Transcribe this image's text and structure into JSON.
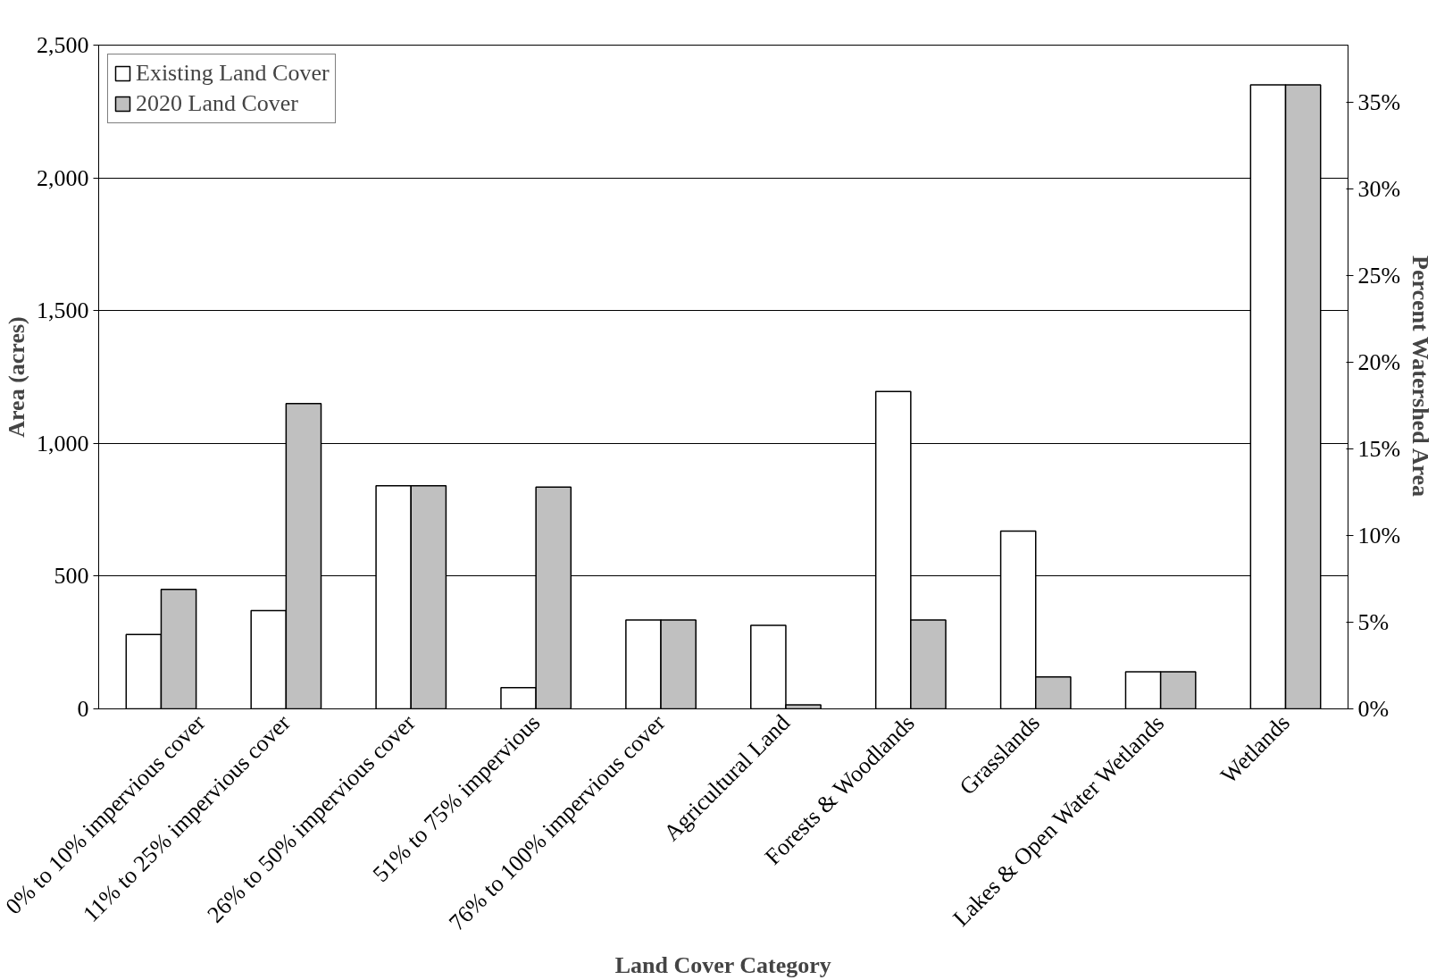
{
  "chart_data": {
    "type": "bar",
    "xlabel": "Land Cover Category",
    "ylabel": "Area (acres)",
    "y2label": "Percent Watershed Area",
    "categories": [
      "0% to 10% impervious cover",
      "11% to 25% impervious cover",
      "26% to 50% impervious cover",
      "51% to 75% impervious",
      "76% to 100% impervious cover",
      "Agricultural Land",
      "Forests & Woodlands",
      "Grasslands",
      "Lakes & Open Water Wetlands",
      "Wetlands"
    ],
    "series": [
      {
        "name": "Existing Land Cover",
        "color": "#ffffff",
        "values": [
          280,
          370,
          840,
          80,
          335,
          315,
          1195,
          670,
          140,
          2350
        ]
      },
      {
        "name": "2020 Land Cover",
        "color": "#c0c0c0",
        "values": [
          450,
          1150,
          840,
          835,
          335,
          15,
          335,
          120,
          140,
          2350
        ]
      }
    ],
    "ylim": [
      0,
      2500
    ],
    "yticks": [
      0,
      {
        "value": 500,
        "label": "500"
      },
      {
        "value": 1000,
        "label": "1,000"
      },
      {
        "value": 1500,
        "label": "1,500"
      },
      {
        "value": 2000,
        "label": "2,000"
      },
      {
        "value": 2500,
        "label": "2,500"
      }
    ],
    "y2lim": [
      0,
      38.3
    ],
    "y2ticks": [
      {
        "value": 0,
        "label": "0%"
      },
      {
        "value": 5,
        "label": "5%"
      },
      {
        "value": 10,
        "label": "10%"
      },
      {
        "value": 15,
        "label": "15%"
      },
      {
        "value": 20,
        "label": "20%"
      },
      {
        "value": 25,
        "label": "25%"
      },
      {
        "value": 30,
        "label": "30%"
      },
      {
        "value": 35,
        "label": "35%"
      }
    ],
    "grid": "y",
    "legend": "top left"
  }
}
